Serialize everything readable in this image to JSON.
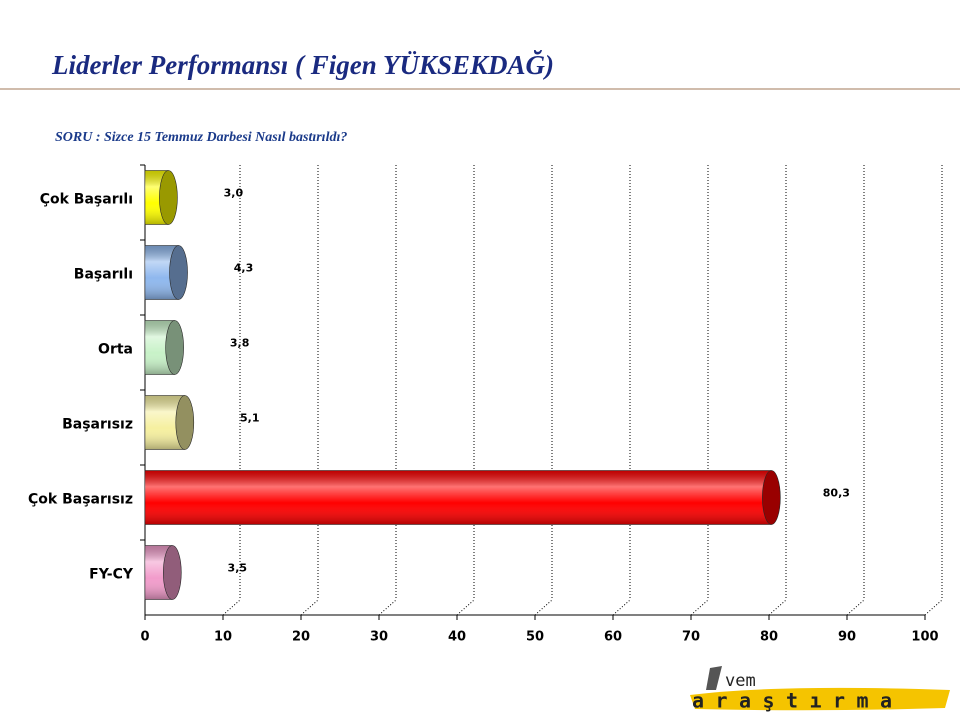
{
  "chart_data": {
    "type": "bar",
    "orientation": "horizontal",
    "title": "Liderler Performansı ( Figen YÜKSEKDAĞ)",
    "subtitle": "SORU : Sizce 15 Temmuz Darbesi Nasıl bastırıldı?",
    "categories": [
      "Çok Başarılı",
      "Başarılı",
      "Orta",
      "Başarısız",
      "Çok Başarısız",
      "FY-CY"
    ],
    "values": [
      3.0,
      4.3,
      3.8,
      5.1,
      80.3,
      3.5
    ],
    "value_labels": [
      "3,0",
      "4,3",
      "3,8",
      "5,1",
      "80,3",
      "3,5"
    ],
    "colors": [
      "#ffff00",
      "#8fb8ee",
      "#c8f2c8",
      "#f6f0a0",
      "#ff0000",
      "#f29ccb"
    ],
    "xlim": [
      0,
      100
    ],
    "xticks": [
      0,
      10,
      20,
      30,
      40,
      50,
      60,
      70,
      80,
      90,
      100
    ],
    "grid": true
  },
  "logo": {
    "top": "vem",
    "bottom": "araştırma"
  }
}
